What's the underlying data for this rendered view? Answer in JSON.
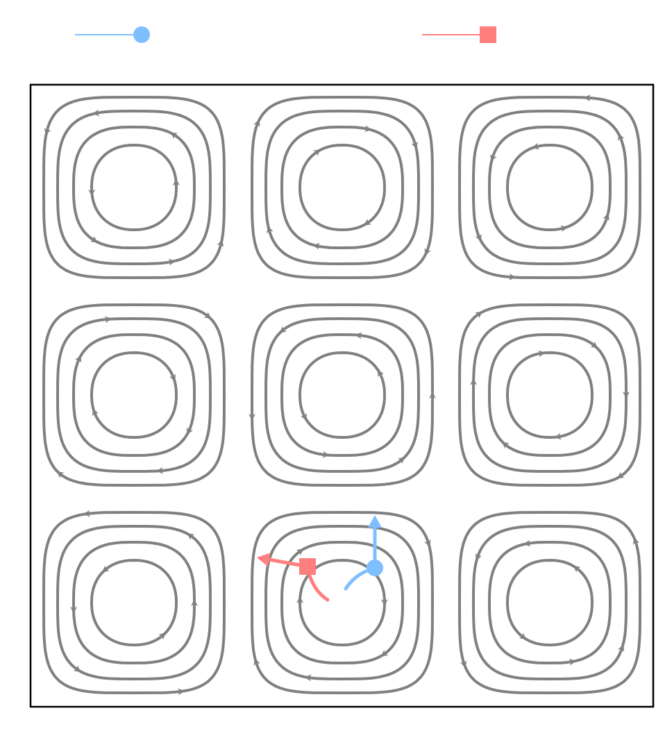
{
  "colors": {
    "background": "#ffffff",
    "frame": "#000000",
    "streamline": "#808080",
    "agent_a": "#7fbfff",
    "agent_b": "#ff7f7f"
  },
  "legend": {
    "items": [
      {
        "key": "agent_a",
        "marker": "circle",
        "label": ""
      },
      {
        "key": "agent_b",
        "marker": "square",
        "label": ""
      }
    ]
  },
  "diagram": {
    "type": "cellular-flow-streamlines",
    "grid_rows": 3,
    "grid_cols": 3,
    "rings_per_cell": 4,
    "rotation": [
      [
        "ccw",
        "cw",
        "ccw"
      ],
      [
        "cw",
        "ccw",
        "cw"
      ],
      [
        "ccw",
        "cw",
        "ccw"
      ]
    ],
    "agents": [
      {
        "key": "agent_a",
        "marker": "circle",
        "cell": [
          2,
          1
        ],
        "heading": "up"
      },
      {
        "key": "agent_b",
        "marker": "square",
        "cell": [
          2,
          1
        ],
        "heading": "left"
      }
    ]
  }
}
